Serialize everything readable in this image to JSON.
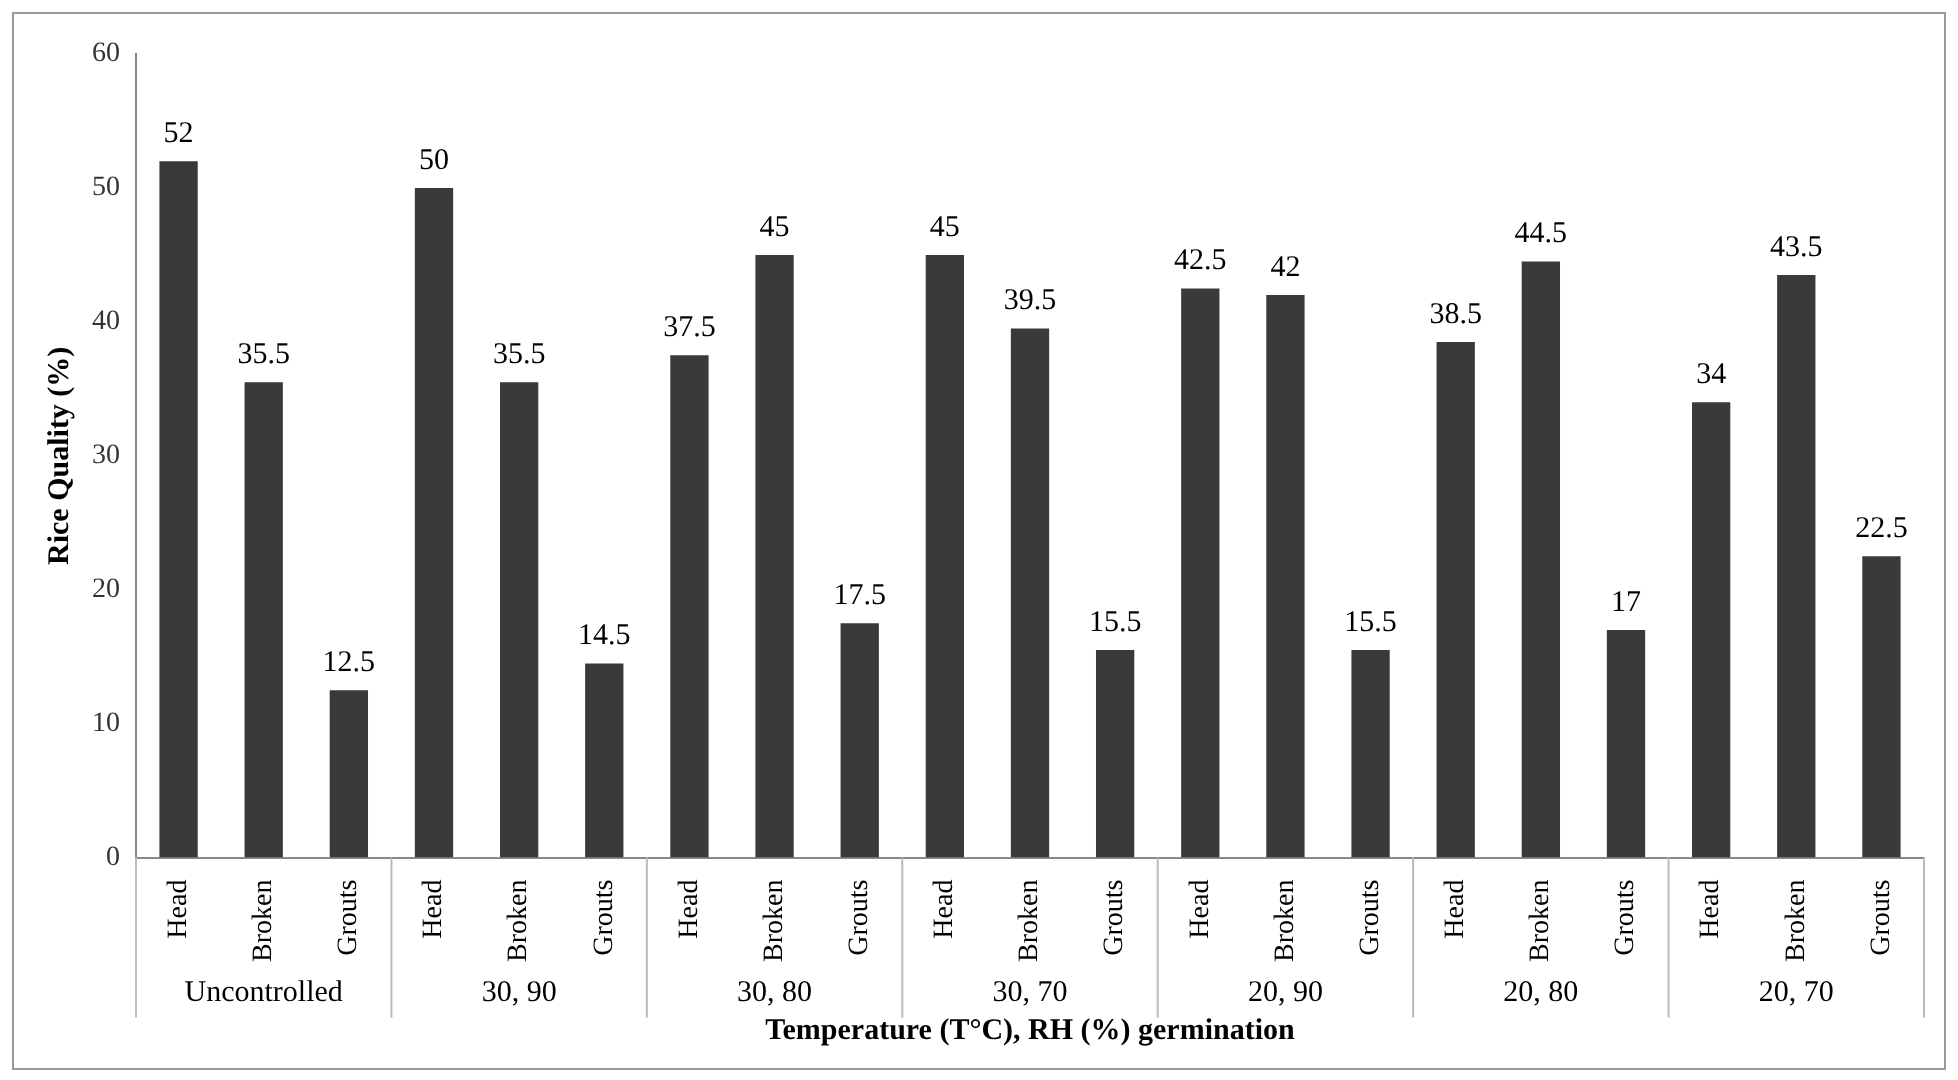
{
  "chart_data": {
    "type": "bar",
    "ylabel": "Rice Quality (%)",
    "xlabel": "Temperature (T°C), RH (%) germination",
    "categories": [
      "Head",
      "Broken",
      "Grouts",
      "Head",
      "Broken",
      "Grouts",
      "Head",
      "Broken",
      "Grouts",
      "Head",
      "Broken",
      "Grouts",
      "Head",
      "Broken",
      "Grouts",
      "Head",
      "Broken",
      "Grouts",
      "Head",
      "Broken",
      "Grouts"
    ],
    "values": [
      52,
      35.5,
      12.5,
      50,
      35.5,
      14.5,
      37.5,
      45,
      17.5,
      45,
      39.5,
      15.5,
      42.5,
      42,
      15.5,
      38.5,
      44.5,
      17,
      34,
      43.5,
      22.5
    ],
    "color": "#3a3a3a",
    "ylim": [
      0,
      60
    ],
    "yticks": [
      0,
      10,
      20,
      30,
      40,
      50,
      60
    ],
    "grid": false,
    "legend": false,
    "data_labels": true,
    "annotations": [
      "Uncontrolled",
      "30, 90",
      "30, 80",
      "30, 70",
      "20, 90",
      "20, 80",
      "20, 70"
    ]
  }
}
